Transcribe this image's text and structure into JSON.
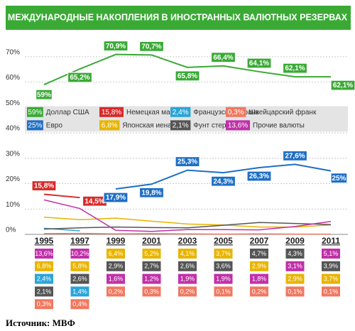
{
  "chart_data": {
    "type": "line",
    "title": "МЕЖДУНАРОДНЫЕ НАКОПЛЕНИЯ В ИНОСТРАННЫХ ВАЛЮТНЫХ РЕЗЕРВАХ",
    "categories": [
      "1995",
      "1997",
      "1999",
      "2001",
      "2003",
      "2005",
      "2007",
      "2009",
      "2011"
    ],
    "ylim": [
      0,
      75
    ],
    "yticks": [
      {
        "value": 0,
        "label": "0%"
      },
      {
        "value": 10,
        "label": "10%"
      },
      {
        "value": 20,
        "label": "20%"
      },
      {
        "value": 30,
        "label": "30%"
      },
      {
        "value": 40,
        "label": "40%"
      },
      {
        "value": 50,
        "label": "50%"
      },
      {
        "value": 60,
        "label": "60%"
      },
      {
        "value": 70,
        "label": "70%"
      }
    ],
    "grid": true,
    "series": [
      {
        "name": "Доллар США",
        "color": "#3aaa35",
        "values": [
          59,
          65.2,
          70.9,
          70.7,
          65.8,
          66.4,
          64.1,
          62.1,
          62.1
        ],
        "value_labels": [
          "59%",
          "65,2%",
          "70,9%",
          "70,7%",
          "65,8%",
          "66,4%",
          "64,1%",
          "62,1%",
          "62,1%"
        ]
      },
      {
        "name": "Немецкая марка",
        "color": "#d62b2b",
        "values": [
          15.8,
          14.5,
          null,
          null,
          null,
          null,
          null,
          null,
          null
        ],
        "value_labels": [
          "15,8%",
          "14,5%",
          null,
          null,
          null,
          null,
          null,
          null,
          null
        ]
      },
      {
        "name": "Французский франк",
        "color": "#2aa5d8",
        "values": [
          2.4,
          1.4,
          null,
          null,
          null,
          null,
          null,
          null,
          null
        ],
        "value_labels": [
          "2,4%",
          "1,4%",
          null,
          null,
          null,
          null,
          null,
          null,
          null
        ]
      },
      {
        "name": "Швейцарский франк",
        "color": "#f07860",
        "values": [
          0.3,
          0.4,
          0.2,
          0.3,
          0.2,
          0.1,
          0.2,
          0.1,
          0.1
        ],
        "value_labels": [
          "0,3%",
          "0,4%",
          "0,2%",
          "0,3%",
          "0,2%",
          "0,1%",
          "0,2%",
          "0,1%",
          "0,1%"
        ]
      },
      {
        "name": "Евро",
        "color": "#1e6fc6",
        "values": [
          null,
          null,
          17.9,
          19.8,
          25.3,
          24.3,
          26.3,
          27.6,
          25
        ],
        "value_labels": [
          null,
          null,
          "17,9%",
          "19,8%",
          "25,3%",
          "24,3%",
          "26,3%",
          "27,6%",
          "25%"
        ]
      },
      {
        "name": "Японская иена",
        "color": "#e8b400",
        "values": [
          6.8,
          5.8,
          6.4,
          5.2,
          4.1,
          3.7,
          2.9,
          2.9,
          3.7
        ],
        "value_labels": [
          "6,8%",
          "5,8%",
          "6,4%",
          "5,2%",
          "4,1%",
          "3,7%",
          "2,9%",
          "2,9%",
          "3,7%"
        ]
      },
      {
        "name": "Фунт стерлингов",
        "color": "#555555",
        "values": [
          2.1,
          2.6,
          2.9,
          2.7,
          2.6,
          3.6,
          4.7,
          4.3,
          3.9
        ],
        "value_labels": [
          "2,1%",
          "2,6%",
          "2,9%",
          "2,7%",
          "2,6%",
          "3,6%",
          "4,7%",
          "4,3%",
          "3,9%"
        ]
      },
      {
        "name": "Прочие валюты",
        "color": "#c030a8",
        "values": [
          13.6,
          10.2,
          1.6,
          1.2,
          1.9,
          1.9,
          1.8,
          3.1,
          5.1
        ],
        "value_labels": [
          "13,6%",
          "10,2%",
          "1,6%",
          "1,2%",
          "1,9%",
          "1,9%",
          "1,8%",
          "3,1%",
          "5,1%"
        ]
      }
    ],
    "source": "Источник: МВФ"
  }
}
